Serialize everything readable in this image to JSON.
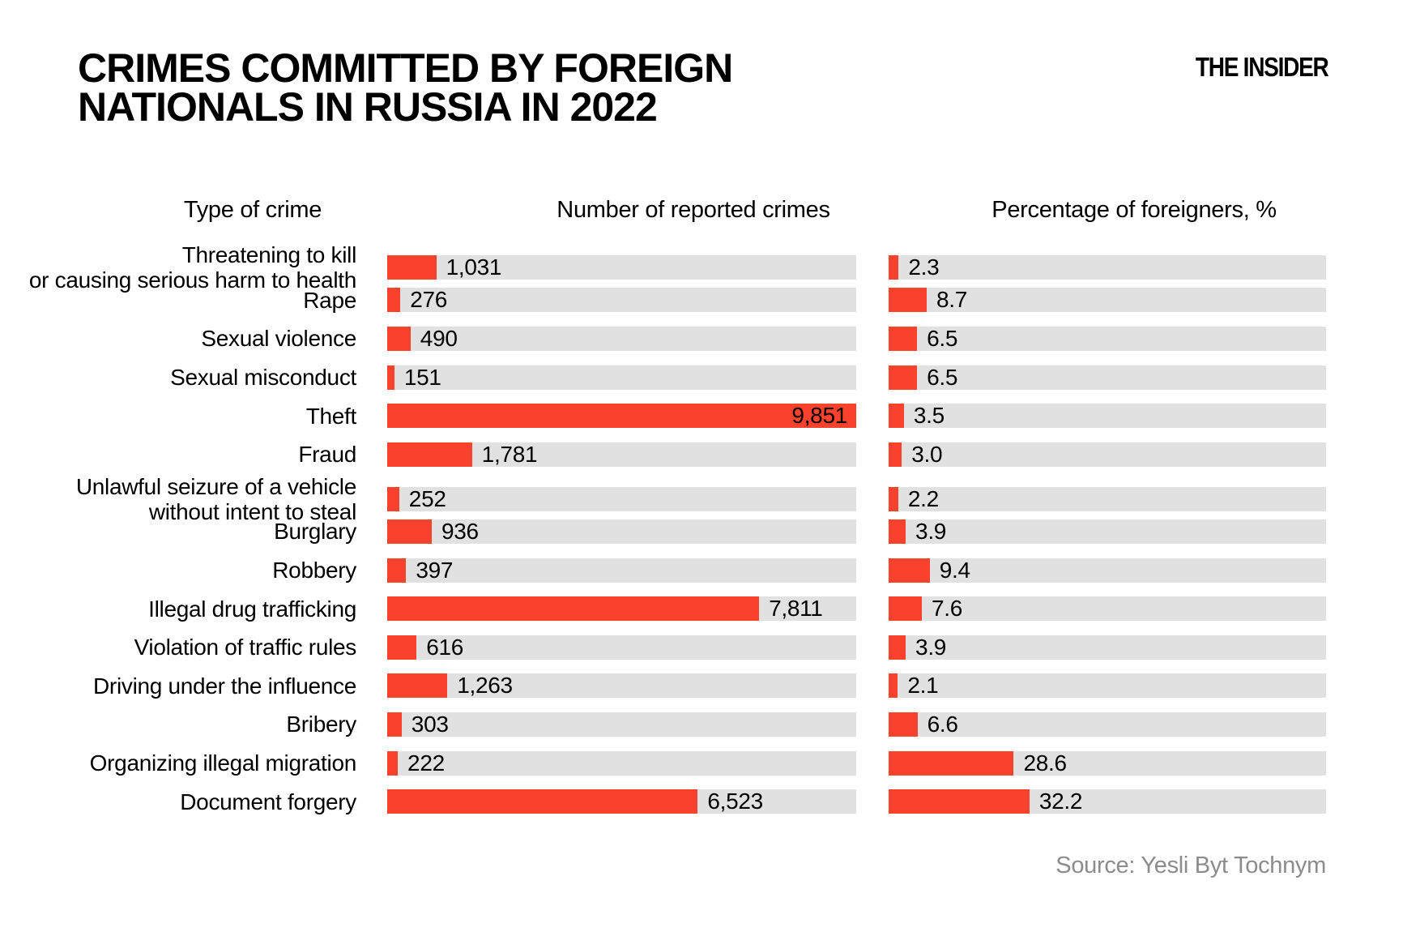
{
  "header": {
    "title_lines": "CRIMES COMMITTED BY FOREIGN\nNATIONALS IN RUSSIA IN 2022",
    "logo": "THE INSIDER"
  },
  "columns": {
    "type_of_crime": "Type of crime"
  },
  "footer": {
    "source": "Source: Yesli Byt Tochnym"
  },
  "chart_data": {
    "type": "bar",
    "orientation": "horizontal",
    "title": "Crimes committed by foreign nationals in Russia in 2022",
    "categories": [
      "Threatening to kill\nor causing serious harm to health",
      "Rape",
      "Sexual violence",
      "Sexual misconduct",
      "Theft",
      "Fraud",
      "Unlawful seizure of a vehicle\nwithout intent to steal",
      "Burglary",
      "Robbery",
      "Illegal drug trafficking",
      "Violation of traffic rules",
      "Driving under the influence",
      "Bribery",
      "Organizing illegal migration",
      "Document forgery"
    ],
    "series": [
      {
        "name": "Number of reported crimes",
        "values": [
          1031,
          276,
          490,
          151,
          9851,
          1781,
          252,
          936,
          397,
          7811,
          616,
          1263,
          303,
          222,
          6523
        ],
        "labels": [
          "1,031",
          "276",
          "490",
          "151",
          "9,851",
          "1,781",
          "252",
          "936",
          "397",
          "7,811",
          "616",
          "1,263",
          "303",
          "222",
          "6,523"
        ],
        "xlim": [
          0,
          9851
        ]
      },
      {
        "name": "Percentage of foreigners, %",
        "values": [
          2.3,
          8.7,
          6.5,
          6.5,
          3.5,
          3.0,
          2.2,
          3.9,
          9.4,
          7.6,
          3.9,
          2.1,
          6.6,
          28.6,
          32.2
        ],
        "labels": [
          "2.3",
          "8.7",
          "6.5",
          "6.5",
          "3.5",
          "3.0",
          "2.2",
          "3.9",
          "9.4",
          "7.6",
          "3.9",
          "2.1",
          "6.6",
          "28.6",
          "32.2"
        ],
        "xlim": [
          0,
          100
        ]
      }
    ],
    "bar_color": "#f9422e",
    "track_color": "#e1e1e1",
    "text_color": "#000000",
    "grid": false,
    "legend_position": "column-headers"
  }
}
